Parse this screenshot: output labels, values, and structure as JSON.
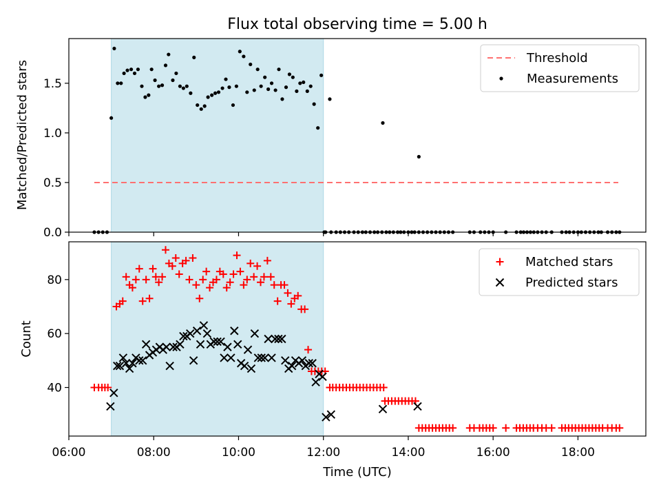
{
  "figure": {
    "title": "Flux total observing time = 5.00 h"
  },
  "chart_data": [
    {
      "type": "scatter",
      "ylabel": "Matched/Predicted stars",
      "xlim": [
        6.0,
        19.6
      ],
      "ylim": [
        0.0,
        1.95
      ],
      "yticks": [
        0.0,
        0.5,
        1.0,
        1.5
      ],
      "ytick_labels": [
        "0.0",
        "0.5",
        "1.0",
        "1.5"
      ],
      "shaded_interval": {
        "x": [
          7.0,
          12.0
        ],
        "color": "#add8e6"
      },
      "legend": {
        "position": "upper right"
      },
      "threshold": {
        "name": "Threshold",
        "y": 0.5,
        "x": [
          6.6,
          18.95
        ],
        "color": "#ff7070",
        "style": "dashed"
      },
      "series": [
        {
          "name": "Measurements",
          "color": "#000000",
          "marker": "dot",
          "x": [
            6.6,
            6.7,
            6.8,
            6.9,
            7.0,
            7.07,
            7.15,
            7.23,
            7.3,
            7.38,
            7.47,
            7.55,
            7.63,
            7.72,
            7.8,
            7.88,
            7.95,
            8.03,
            8.12,
            8.2,
            8.28,
            8.35,
            8.45,
            8.53,
            8.62,
            8.7,
            8.78,
            8.87,
            8.95,
            9.03,
            9.12,
            9.2,
            9.28,
            9.37,
            9.45,
            9.53,
            9.62,
            9.7,
            9.78,
            9.87,
            9.95,
            10.03,
            10.12,
            10.2,
            10.28,
            10.37,
            10.45,
            10.53,
            10.62,
            10.7,
            10.78,
            10.87,
            10.95,
            11.03,
            11.12,
            11.2,
            11.28,
            11.37,
            11.45,
            11.53,
            11.62,
            11.7,
            11.78,
            11.87,
            11.95,
            12.02,
            12.15,
            13.4,
            14.25
          ],
          "y": [
            0.0,
            0.0,
            0.0,
            0.0,
            1.15,
            1.85,
            1.5,
            1.5,
            1.6,
            1.63,
            1.64,
            1.6,
            1.64,
            1.47,
            1.36,
            1.38,
            1.64,
            1.53,
            1.47,
            1.48,
            1.68,
            1.79,
            1.53,
            1.6,
            1.47,
            1.45,
            1.47,
            1.4,
            1.76,
            1.28,
            1.24,
            1.27,
            1.36,
            1.38,
            1.4,
            1.41,
            1.45,
            1.54,
            1.46,
            1.28,
            1.47,
            1.82,
            1.77,
            1.41,
            1.69,
            1.43,
            1.64,
            1.47,
            1.56,
            1.44,
            1.5,
            1.43,
            1.64,
            1.34,
            1.46,
            1.59,
            1.56,
            1.42,
            1.5,
            1.51,
            1.42,
            1.47,
            1.29,
            1.05,
            1.58,
            0.0,
            1.34,
            1.1,
            0.76
          ],
          "zeros_x": [
            12.05,
            12.18,
            12.3,
            12.4,
            12.5,
            12.6,
            12.72,
            12.82,
            12.92,
            13.0,
            13.1,
            13.2,
            13.28,
            13.38,
            13.48,
            13.56,
            13.65,
            13.75,
            13.82,
            13.9,
            14.0,
            14.08,
            14.15,
            14.25,
            14.35,
            14.45,
            14.55,
            14.65,
            14.75,
            14.85,
            14.95,
            15.05,
            15.45,
            15.55,
            15.7,
            15.8,
            15.9,
            16.0,
            16.3,
            16.55,
            16.65,
            16.72,
            16.8,
            16.88,
            16.96,
            17.05,
            17.15,
            17.25,
            17.38,
            17.62,
            17.72,
            17.8,
            17.9,
            18.0,
            18.08,
            18.18,
            18.28,
            18.38,
            18.48,
            18.55,
            18.7,
            18.8,
            18.9,
            18.98
          ]
        }
      ]
    },
    {
      "type": "scatter",
      "xlabel": "Time (UTC)",
      "ylabel": "Count",
      "xlim": [
        6.0,
        19.6
      ],
      "ylim": [
        22,
        94
      ],
      "yticks": [
        40,
        60,
        80
      ],
      "ytick_labels": [
        "40",
        "60",
        "80"
      ],
      "xticks": [
        6,
        8,
        10,
        12,
        14,
        16,
        18
      ],
      "xtick_labels": [
        "06:00",
        "08:00",
        "10:00",
        "12:00",
        "14:00",
        "16:00",
        "18:00"
      ],
      "shaded_interval": {
        "x": [
          7.0,
          12.0
        ],
        "color": "#add8e6"
      },
      "legend": {
        "position": "upper right"
      },
      "series": [
        {
          "name": "Matched stars",
          "color": "#ff0000",
          "marker": "plus",
          "x": [
            6.6,
            6.7,
            6.78,
            6.85,
            6.92,
            7.12,
            7.2,
            7.27,
            7.35,
            7.43,
            7.5,
            7.58,
            7.66,
            7.74,
            7.82,
            7.9,
            7.98,
            8.05,
            8.12,
            8.2,
            8.28,
            8.36,
            8.44,
            8.52,
            8.6,
            8.68,
            8.76,
            8.84,
            8.92,
            9.0,
            9.08,
            9.16,
            9.24,
            9.32,
            9.4,
            9.48,
            9.56,
            9.64,
            9.72,
            9.8,
            9.88,
            9.96,
            10.04,
            10.12,
            10.2,
            10.28,
            10.36,
            10.44,
            10.52,
            10.6,
            10.68,
            10.76,
            10.84,
            10.92,
            11.0,
            11.08,
            11.16,
            11.24,
            11.32,
            11.4,
            11.48,
            11.56,
            11.64,
            11.72,
            11.8,
            11.88,
            11.96,
            12.04
          ],
          "y": [
            40,
            40,
            40,
            40,
            40,
            70,
            71,
            72,
            81,
            78,
            77,
            80,
            84,
            72,
            80,
            73,
            84,
            81,
            79,
            81,
            91,
            86,
            85,
            88,
            82,
            86,
            87,
            80,
            88,
            78,
            73,
            80,
            83,
            77,
            79,
            80,
            83,
            82,
            77,
            79,
            82,
            89,
            83,
            78,
            80,
            86,
            81,
            85,
            79,
            81,
            87,
            81,
            78,
            72,
            78,
            78,
            75,
            71,
            73,
            74,
            69,
            69,
            54,
            46,
            46,
            46,
            46,
            46
          ],
          "plateaus": [
            {
              "x": [
                12.15,
                12.22,
                12.3,
                12.38,
                12.46,
                12.54,
                12.62,
                12.7,
                12.78,
                12.86,
                12.94,
                13.02,
                13.1,
                13.18,
                13.26,
                13.34,
                13.42
              ],
              "y": 40
            },
            {
              "x": [
                13.45,
                13.53,
                13.61,
                13.69,
                13.77,
                13.85,
                13.93,
                14.01,
                14.09,
                14.17
              ],
              "y": 35
            },
            {
              "x": [
                14.25,
                14.33,
                14.41,
                14.49,
                14.57,
                14.65,
                14.73,
                14.81,
                14.89,
                14.97,
                15.05,
                15.45,
                15.55,
                15.68,
                15.76,
                15.84,
                15.92,
                16.0,
                16.3,
                16.55,
                16.63,
                16.71,
                16.79,
                16.87,
                16.95,
                17.05,
                17.15,
                17.25,
                17.38,
                17.62,
                17.7,
                17.78,
                17.86,
                17.94,
                18.02,
                18.1,
                18.18,
                18.26,
                18.34,
                18.42,
                18.5,
                18.58,
                18.7,
                18.8,
                18.9,
                18.98
              ],
              "y": 25
            }
          ]
        },
        {
          "name": "Predicted stars",
          "color": "#000000",
          "marker": "x",
          "x": [
            6.98,
            7.06,
            7.14,
            7.2,
            7.28,
            7.35,
            7.43,
            7.5,
            7.58,
            7.66,
            7.74,
            7.82,
            7.9,
            7.98,
            8.06,
            8.14,
            8.22,
            8.3,
            8.38,
            8.46,
            8.54,
            8.62,
            8.7,
            8.78,
            8.86,
            8.94,
            9.02,
            9.1,
            9.18,
            9.26,
            9.34,
            9.42,
            9.5,
            9.58,
            9.66,
            9.74,
            9.82,
            9.9,
            9.98,
            10.06,
            10.14,
            10.22,
            10.3,
            10.38,
            10.46,
            10.54,
            10.62,
            10.7,
            10.78,
            10.86,
            10.94,
            11.02,
            11.1,
            11.18,
            11.26,
            11.34,
            11.42,
            11.5,
            11.58,
            11.66,
            11.74,
            11.82,
            11.9,
            11.98,
            12.06,
            12.18,
            13.4,
            14.22
          ],
          "y": [
            33,
            38,
            48,
            48,
            51,
            49,
            47,
            49,
            51,
            50,
            50,
            56,
            52,
            53,
            54,
            55,
            54,
            55,
            48,
            55,
            55,
            56,
            59,
            59,
            60,
            50,
            61,
            56,
            63,
            60,
            56,
            57,
            57,
            57,
            51,
            55,
            51,
            61,
            56,
            49,
            48,
            54,
            47,
            60,
            51,
            51,
            51,
            58,
            51,
            58,
            58,
            58,
            50,
            47,
            48,
            50,
            49,
            50,
            48,
            49,
            49,
            42,
            45,
            44,
            29,
            30,
            32,
            33
          ]
        }
      ]
    }
  ]
}
